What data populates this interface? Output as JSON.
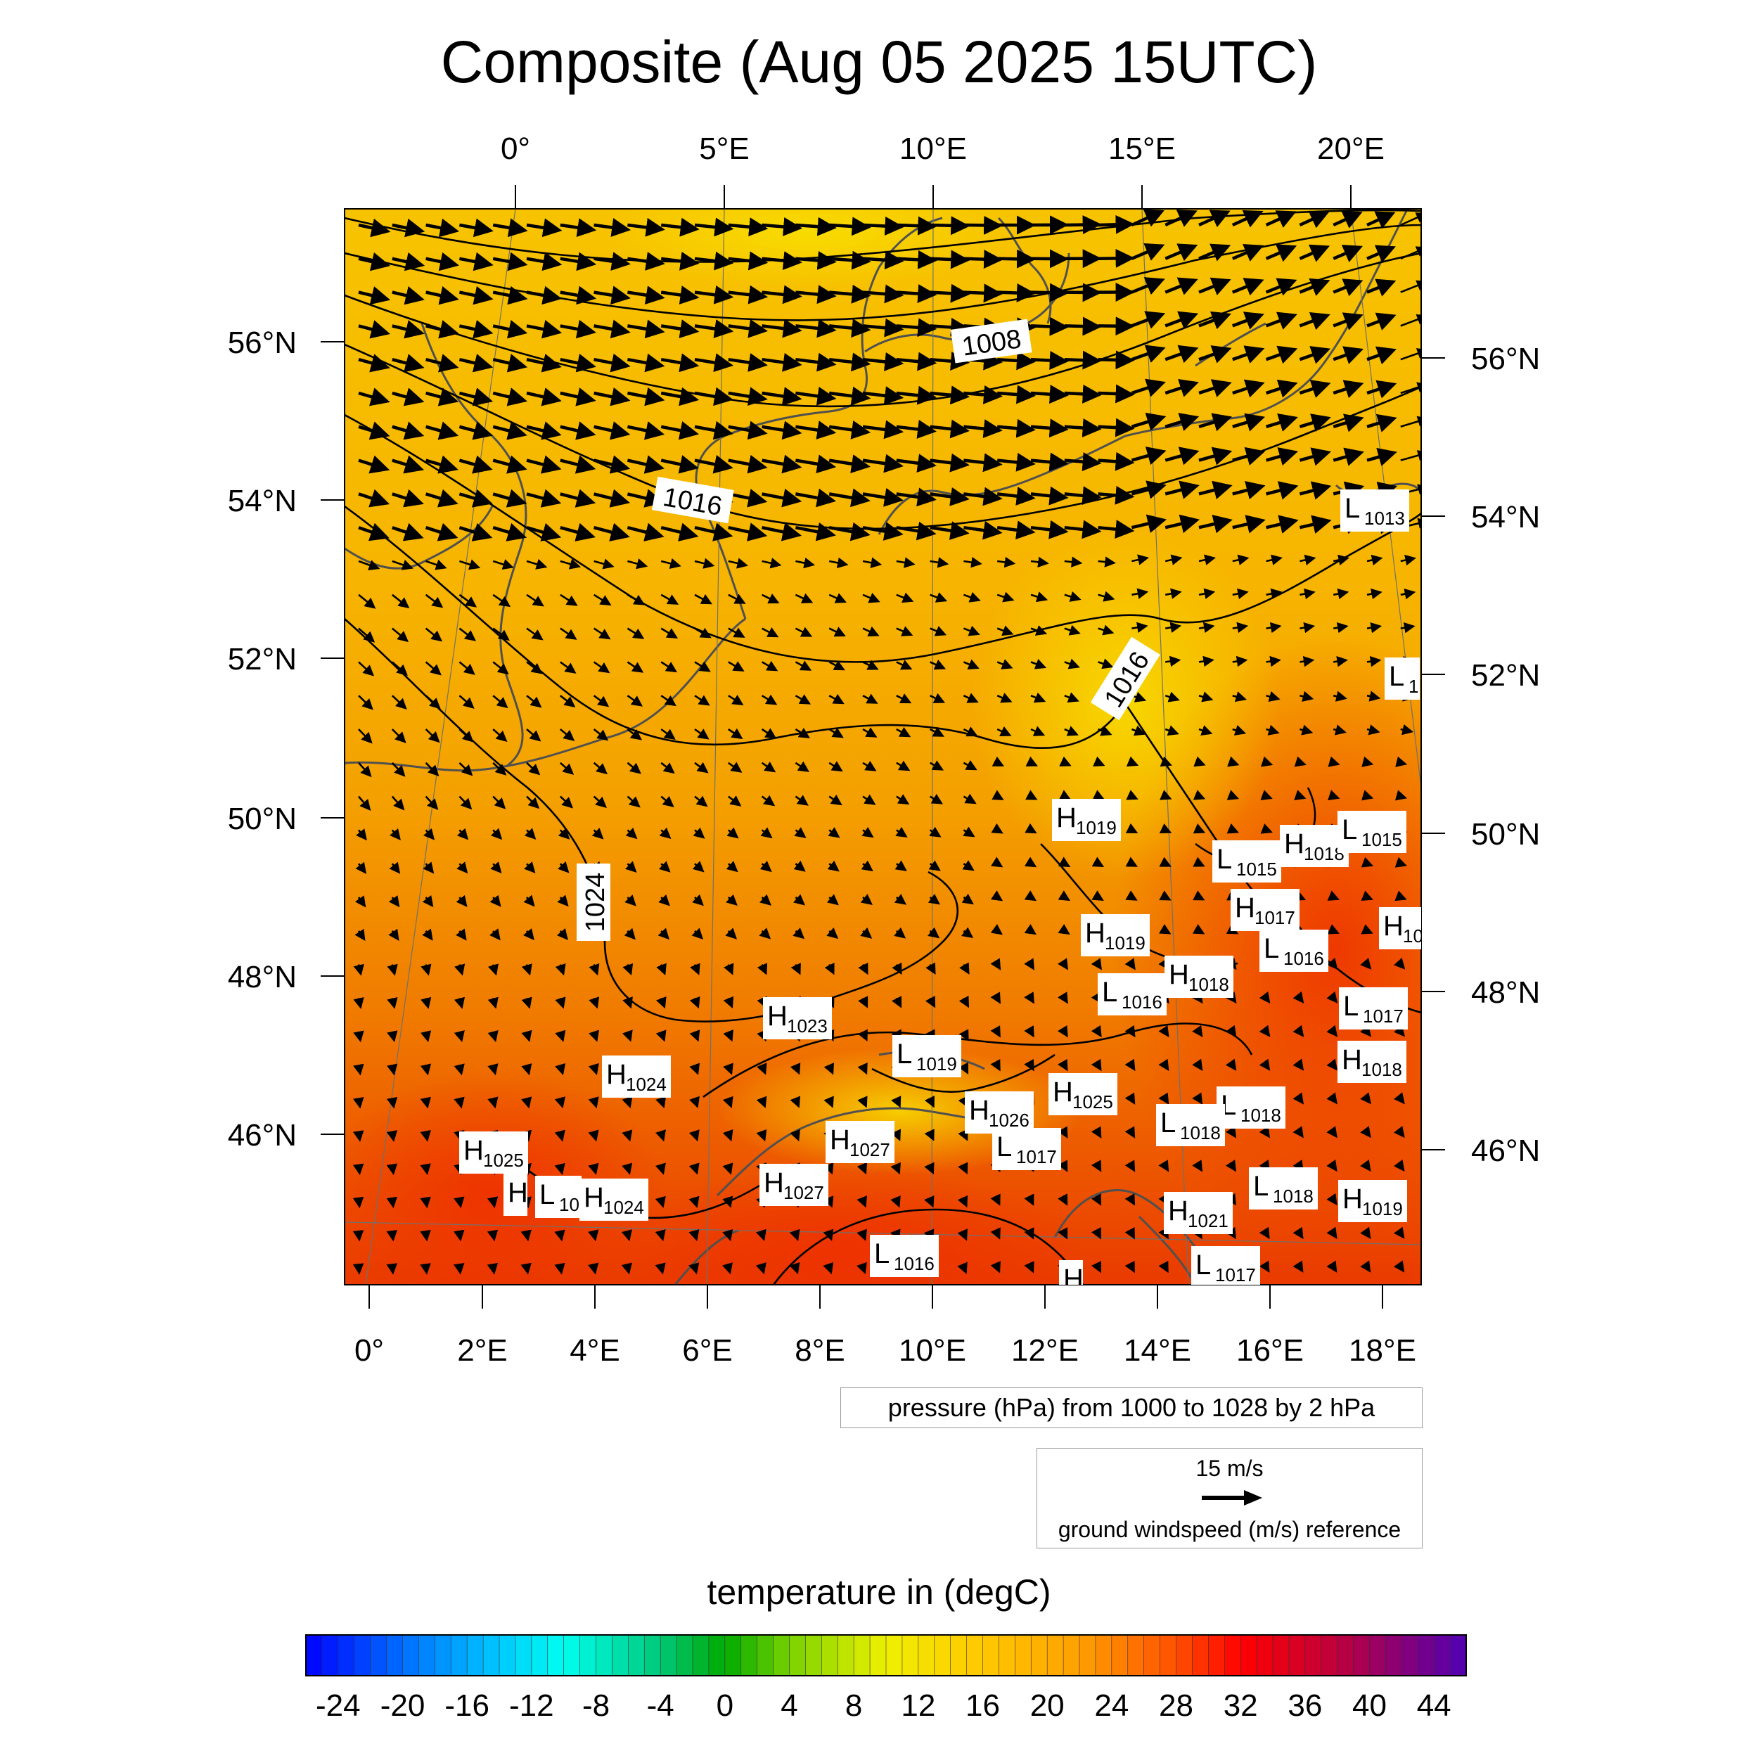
{
  "title": "Composite (Aug 05 2025 15UTC)",
  "axes": {
    "top_lon_labels": [
      "0°",
      "5°E",
      "10°E",
      "15°E",
      "20°E"
    ],
    "bottom_lon_labels": [
      "0°",
      "2°E",
      "4°E",
      "6°E",
      "8°E",
      "10°E",
      "12°E",
      "14°E",
      "16°E",
      "18°E"
    ],
    "left_lat_labels": [
      "56°N",
      "54°N",
      "52°N",
      "50°N",
      "48°N",
      "46°N"
    ],
    "right_lat_labels": [
      "56°N",
      "54°N",
      "52°N",
      "50°N",
      "48°N",
      "46°N"
    ]
  },
  "contour_labels": [
    "1008",
    "1016",
    "1016",
    "1024"
  ],
  "pressure_centers": [
    {
      "type": "L",
      "value": "1013"
    },
    {
      "type": "L",
      "value": "1"
    },
    {
      "type": "H",
      "value": "1019"
    },
    {
      "type": "L",
      "value": "1015"
    },
    {
      "type": "H",
      "value": "1018"
    },
    {
      "type": "L",
      "value": "1015"
    },
    {
      "type": "H",
      "value": "1017"
    },
    {
      "type": "H",
      "value": "1019"
    },
    {
      "type": "L",
      "value": "1016"
    },
    {
      "type": "H",
      "value": "1018"
    },
    {
      "type": "L",
      "value": "1016"
    },
    {
      "type": "L",
      "value": "1017"
    },
    {
      "type": "H",
      "value": "10"
    },
    {
      "type": "H",
      "value": "1023"
    },
    {
      "type": "L",
      "value": "1019"
    },
    {
      "type": "H",
      "value": "1018"
    },
    {
      "type": "H",
      "value": "1024"
    },
    {
      "type": "H",
      "value": "1025"
    },
    {
      "type": "H",
      "value": "1026"
    },
    {
      "type": "L",
      "value": "1018"
    },
    {
      "type": "L",
      "value": "1018"
    },
    {
      "type": "H",
      "value": "1027"
    },
    {
      "type": "L",
      "value": "1017"
    },
    {
      "type": "H",
      "value": "1025"
    },
    {
      "type": "H",
      "value": "1027"
    },
    {
      "type": "L",
      "value": "1018"
    },
    {
      "type": "H",
      "value": "1019"
    },
    {
      "type": "H",
      "value": ""
    },
    {
      "type": "L",
      "value": "10"
    },
    {
      "type": "H",
      "value": "1024"
    },
    {
      "type": "H",
      "value": "1021"
    },
    {
      "type": "L",
      "value": "1016"
    },
    {
      "type": "L",
      "value": "1017"
    },
    {
      "type": "H",
      "value": ""
    }
  ],
  "pressure_legend": "pressure (hPa) from 1000 to 1028 by 2 hPa",
  "wind_legend": {
    "value": "15 m/s",
    "label": "ground windspeed (m/s) reference"
  },
  "colorbar": {
    "title": "temperature in (degC)",
    "tick_labels": [
      "-24",
      "-20",
      "-16",
      "-12",
      "-8",
      "-4",
      "0",
      "4",
      "8",
      "12",
      "16",
      "20",
      "24",
      "28",
      "32",
      "36",
      "40",
      "44"
    ],
    "min": -26,
    "max": 46,
    "step": 1
  },
  "wind_field": {
    "description_units": "m/s",
    "dominant_flow": "west-northwesterly, strongest over North Sea and Baltic (north), weak and northerly over southern France and Alps"
  }
}
